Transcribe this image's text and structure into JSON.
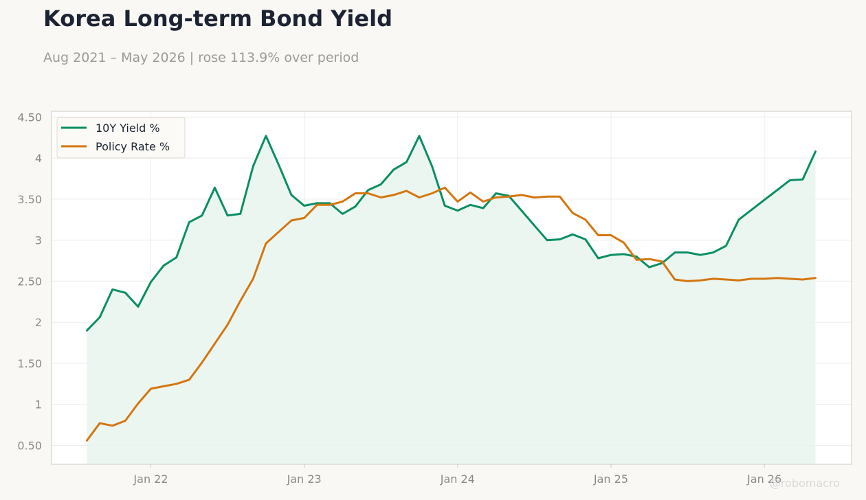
{
  "header": {
    "title": "Korea Long-term Bond Yield",
    "subtitle": "Aug 2021 – May 2026 | rose 113.9% over period"
  },
  "watermark": "@robomacro",
  "colors": {
    "yield": "#0a8f62",
    "policy": "#d4760f",
    "fill": "#e9f5ef",
    "grid": "#ececec",
    "axis": "#cfcac0",
    "tick_text": "#8a8a8a"
  },
  "chart_data": {
    "type": "line",
    "x_start": "2021-08",
    "x_end": "2026-05",
    "xticks": [
      {
        "label": "Jan 22",
        "date": "2022-01"
      },
      {
        "label": "Jan 23",
        "date": "2023-01"
      },
      {
        "label": "Jan 24",
        "date": "2024-01"
      },
      {
        "label": "Jan 25",
        "date": "2025-01"
      },
      {
        "label": "Jan 26",
        "date": "2026-01"
      }
    ],
    "yticks": [
      {
        "label": "0.50",
        "value": 0.5
      },
      {
        "label": "1",
        "value": 1
      },
      {
        "label": "1.50",
        "value": 1.5
      },
      {
        "label": "2",
        "value": 2
      },
      {
        "label": "2.50",
        "value": 2.5
      },
      {
        "label": "3",
        "value": 3
      },
      {
        "label": "3.50",
        "value": 3.5
      },
      {
        "label": "4",
        "value": 4
      },
      {
        "label": "4.50",
        "value": 4.5
      }
    ],
    "ylim": [
      0.27,
      4.57
    ],
    "grid": true,
    "legend_position": "top-left",
    "series": [
      {
        "name": "10Y Yield %",
        "key": "yield",
        "area_fill": true,
        "values": [
          1.9,
          2.06,
          2.4,
          2.36,
          2.19,
          2.49,
          2.69,
          2.79,
          3.22,
          3.3,
          3.64,
          3.3,
          3.32,
          3.9,
          4.27,
          3.92,
          3.55,
          3.42,
          3.45,
          3.45,
          3.32,
          3.41,
          3.61,
          3.68,
          3.86,
          3.95,
          4.27,
          3.9,
          3.42,
          3.36,
          3.43,
          3.39,
          3.57,
          3.54,
          3.36,
          3.18,
          3.0,
          3.01,
          3.07,
          3.01,
          2.78,
          2.82,
          2.83,
          2.8,
          2.67,
          2.72,
          2.85,
          2.85,
          2.82,
          2.85,
          2.93,
          3.25,
          3.37,
          3.49,
          3.61,
          3.73,
          3.74,
          4.08
        ]
      },
      {
        "name": "Policy Rate %",
        "key": "policy",
        "area_fill": false,
        "values": [
          0.56,
          0.77,
          0.74,
          0.8,
          1.01,
          1.19,
          1.22,
          1.25,
          1.3,
          1.51,
          1.74,
          1.97,
          2.26,
          2.53,
          2.96,
          3.1,
          3.24,
          3.27,
          3.43,
          3.43,
          3.47,
          3.57,
          3.57,
          3.52,
          3.55,
          3.6,
          3.52,
          3.57,
          3.64,
          3.47,
          3.58,
          3.47,
          3.52,
          3.53,
          3.55,
          3.52,
          3.53,
          3.53,
          3.33,
          3.25,
          3.06,
          3.06,
          2.97,
          2.76,
          2.77,
          2.74,
          2.52,
          2.5,
          2.51,
          2.53,
          2.52,
          2.51,
          2.53,
          2.53,
          2.54,
          2.53,
          2.52,
          2.54
        ]
      }
    ]
  }
}
